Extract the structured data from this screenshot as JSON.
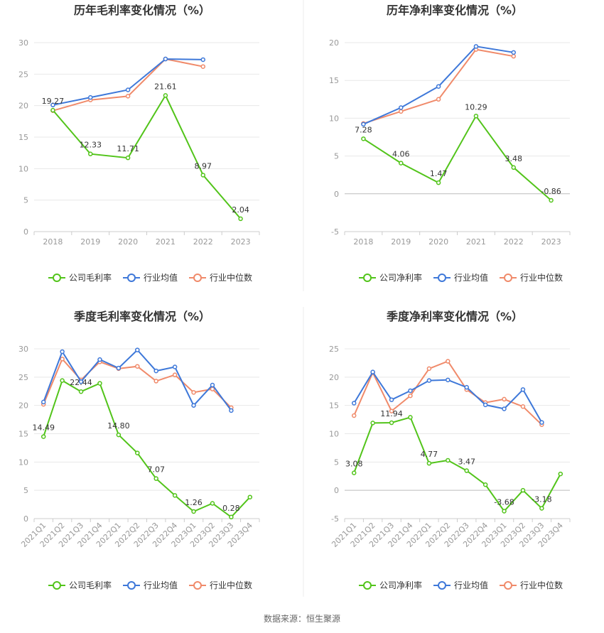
{
  "colors": {
    "company": "#52c41a",
    "industry_avg": "#3e78d9",
    "industry_median": "#f08a6a",
    "grid": "#e8e8e8",
    "axis": "#999999"
  },
  "legend_labels_gross": [
    "公司毛利率",
    "行业均值",
    "行业中位数"
  ],
  "legend_labels_net": [
    "公司净利率",
    "行业均值",
    "行业中位数"
  ],
  "footer": "数据来源：恒生聚源",
  "chart_data": [
    {
      "type": "line",
      "title": "历年毛利率变化情况（%）",
      "categories": [
        "2018",
        "2019",
        "2020",
        "2021",
        "2022",
        "2023"
      ],
      "ylim": [
        0,
        30
      ],
      "yticks": [
        0,
        5,
        10,
        15,
        20,
        25,
        30
      ],
      "series": [
        {
          "name": "公司毛利率",
          "values": [
            19.27,
            12.33,
            11.71,
            21.61,
            8.97,
            2.04
          ],
          "labels": [
            "19.27",
            "12.33",
            "11.71",
            "21.61",
            "8.97",
            "2.04"
          ]
        },
        {
          "name": "行业均值",
          "values": [
            20.1,
            21.3,
            22.5,
            27.4,
            27.3,
            null
          ]
        },
        {
          "name": "行业中位数",
          "values": [
            19.2,
            20.9,
            21.5,
            27.4,
            26.2,
            null
          ]
        }
      ],
      "legend": "bottom"
    },
    {
      "type": "line",
      "title": "历年净利率变化情况（%）",
      "categories": [
        "2018",
        "2019",
        "2020",
        "2021",
        "2022",
        "2023"
      ],
      "ylim": [
        -5,
        20
      ],
      "yticks": [
        -5,
        0,
        5,
        10,
        15,
        20
      ],
      "series": [
        {
          "name": "公司净利率",
          "values": [
            7.28,
            4.06,
            1.47,
            10.29,
            3.48,
            -0.86
          ],
          "labels": [
            "7.28",
            "4.06",
            "1.47",
            "10.29",
            "3.48",
            "-0.86"
          ]
        },
        {
          "name": "行业均值",
          "values": [
            9.2,
            11.4,
            14.2,
            19.5,
            18.7,
            null
          ]
        },
        {
          "name": "行业中位数",
          "values": [
            9.3,
            10.9,
            12.5,
            19.1,
            18.2,
            null
          ]
        }
      ],
      "legend": "bottom"
    },
    {
      "type": "line",
      "title": "季度毛利率变化情况（%）",
      "categories": [
        "2021Q1",
        "2021Q2",
        "2021Q3",
        "2021Q4",
        "2022Q1",
        "2022Q2",
        "2022Q3",
        "2022Q4",
        "2023Q1",
        "2023Q2",
        "2023Q3",
        "2023Q4"
      ],
      "ylim": [
        0,
        30
      ],
      "yticks": [
        0,
        5,
        10,
        15,
        20,
        25,
        30
      ],
      "series": [
        {
          "name": "公司毛利率",
          "values": [
            14.49,
            24.4,
            22.44,
            23.9,
            14.8,
            11.6,
            7.07,
            4.1,
            1.26,
            2.7,
            0.28,
            3.8
          ],
          "labels": [
            "14.49",
            "",
            "22.44",
            "",
            "14.80",
            "",
            "7.07",
            "",
            "1.26",
            "",
            "0.28",
            ""
          ]
        },
        {
          "name": "行业均值",
          "values": [
            20.6,
            29.5,
            24.2,
            28.1,
            26.6,
            29.8,
            26.1,
            26.8,
            20.0,
            23.6,
            19.1,
            null
          ]
        },
        {
          "name": "行业中位数",
          "values": [
            20.2,
            28.2,
            24.5,
            27.7,
            26.5,
            26.9,
            24.3,
            25.4,
            22.3,
            22.9,
            19.6,
            null
          ]
        }
      ],
      "legend": "bottom"
    },
    {
      "type": "line",
      "title": "季度净利率变化情况（%）",
      "categories": [
        "2021Q1",
        "2021Q2",
        "2021Q3",
        "2021Q4",
        "2022Q1",
        "2022Q2",
        "2022Q3",
        "2022Q4",
        "2023Q1",
        "2023Q2",
        "2023Q3",
        "2023Q4"
      ],
      "ylim": [
        -5,
        25
      ],
      "yticks": [
        -5,
        0,
        5,
        10,
        15,
        20,
        25
      ],
      "series": [
        {
          "name": "公司净利率",
          "values": [
            3.08,
            11.9,
            11.94,
            12.9,
            4.77,
            5.3,
            3.47,
            1.0,
            -3.68,
            0.0,
            -3.18,
            2.9
          ],
          "labels": [
            "3.08",
            "",
            "11.94",
            "",
            "4.77",
            "",
            "3.47",
            "",
            "-3.68",
            "",
            "-3.18",
            ""
          ]
        },
        {
          "name": "行业均值",
          "values": [
            15.4,
            20.9,
            16.0,
            17.6,
            19.4,
            19.5,
            18.2,
            15.1,
            14.4,
            17.8,
            12.0,
            null
          ]
        },
        {
          "name": "行业中位数",
          "values": [
            13.2,
            20.8,
            14.0,
            16.7,
            21.5,
            22.8,
            17.8,
            15.5,
            16.1,
            14.8,
            11.6,
            null
          ]
        }
      ],
      "legend": "bottom"
    }
  ]
}
